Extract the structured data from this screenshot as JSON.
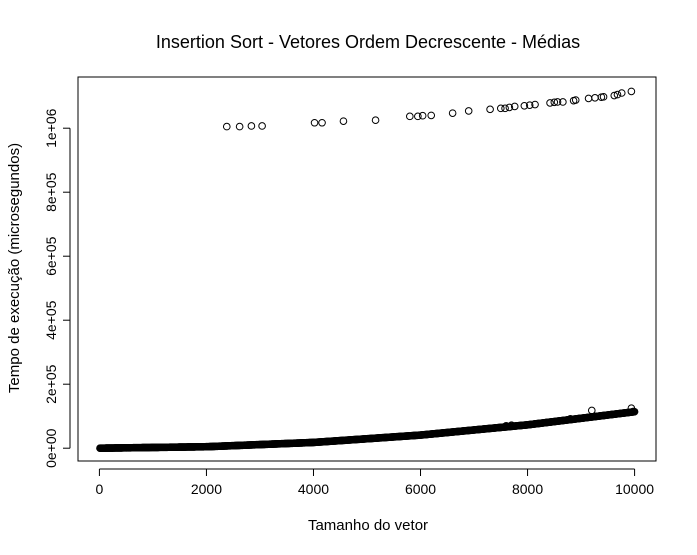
{
  "chart_data": {
    "type": "scatter",
    "title": "Insertion Sort - Vetores Ordem Decrescente - Médias",
    "xlabel": "Tamanho do vetor",
    "ylabel": "Tempo de execução (microsegundos)",
    "xlim": [
      -400,
      10400
    ],
    "ylim": [
      -40000,
      1160000
    ],
    "x_ticks": [
      0,
      2000,
      4000,
      6000,
      8000,
      10000
    ],
    "x_tick_labels": [
      "0",
      "2000",
      "4000",
      "6000",
      "8000",
      "10000"
    ],
    "y_ticks": [
      0,
      200000,
      400000,
      600000,
      800000,
      1000000
    ],
    "y_tick_labels": [
      "0e+00",
      "2e+05",
      "4e+05",
      "6e+05",
      "8e+05",
      "1e+06"
    ],
    "grid": false,
    "marker": "open-circle",
    "series": [
      {
        "description": "dense curve of averages for all vector sizes",
        "x_range": [
          10,
          10000
        ],
        "x_step": 10,
        "model": "y ≈ 1.14e-3 · x²",
        "points": [
          [
            0,
            0
          ],
          [
            2000,
            4600
          ],
          [
            4000,
            18000
          ],
          [
            6000,
            41000
          ],
          [
            8000,
            73000
          ],
          [
            10000,
            114000
          ]
        ]
      },
      {
        "description": "outlier points",
        "points": [
          [
            2380,
            1005000
          ],
          [
            2620,
            1005000
          ],
          [
            2840,
            1007000
          ],
          [
            3040,
            1007000
          ],
          [
            4020,
            1017000
          ],
          [
            4160,
            1017000
          ],
          [
            4560,
            1022000
          ],
          [
            5160,
            1025000
          ],
          [
            5800,
            1037000
          ],
          [
            5950,
            1037000
          ],
          [
            6040,
            1039000
          ],
          [
            6200,
            1040000
          ],
          [
            6600,
            1047000
          ],
          [
            6900,
            1054000
          ],
          [
            7300,
            1059000
          ],
          [
            7500,
            1062000
          ],
          [
            7580,
            1062000
          ],
          [
            7660,
            1065000
          ],
          [
            7760,
            1068000
          ],
          [
            7940,
            1070000
          ],
          [
            8040,
            1072000
          ],
          [
            8140,
            1074000
          ],
          [
            8420,
            1079000
          ],
          [
            8500,
            1081000
          ],
          [
            8560,
            1082000
          ],
          [
            8660,
            1082000
          ],
          [
            8860,
            1086000
          ],
          [
            8900,
            1088000
          ],
          [
            9140,
            1093000
          ],
          [
            9260,
            1095000
          ],
          [
            9380,
            1097000
          ],
          [
            9420,
            1098000
          ],
          [
            9620,
            1102000
          ],
          [
            9680,
            1105000
          ],
          [
            9760,
            1110000
          ],
          [
            9940,
            1115000
          ]
        ]
      },
      {
        "description": "minor outliers near the curve",
        "points": [
          [
            7600,
            70000
          ],
          [
            7700,
            72000
          ],
          [
            8800,
            92000
          ],
          [
            9200,
            118000
          ],
          [
            9940,
            125000
          ],
          [
            9980,
            115000
          ]
        ]
      }
    ]
  }
}
